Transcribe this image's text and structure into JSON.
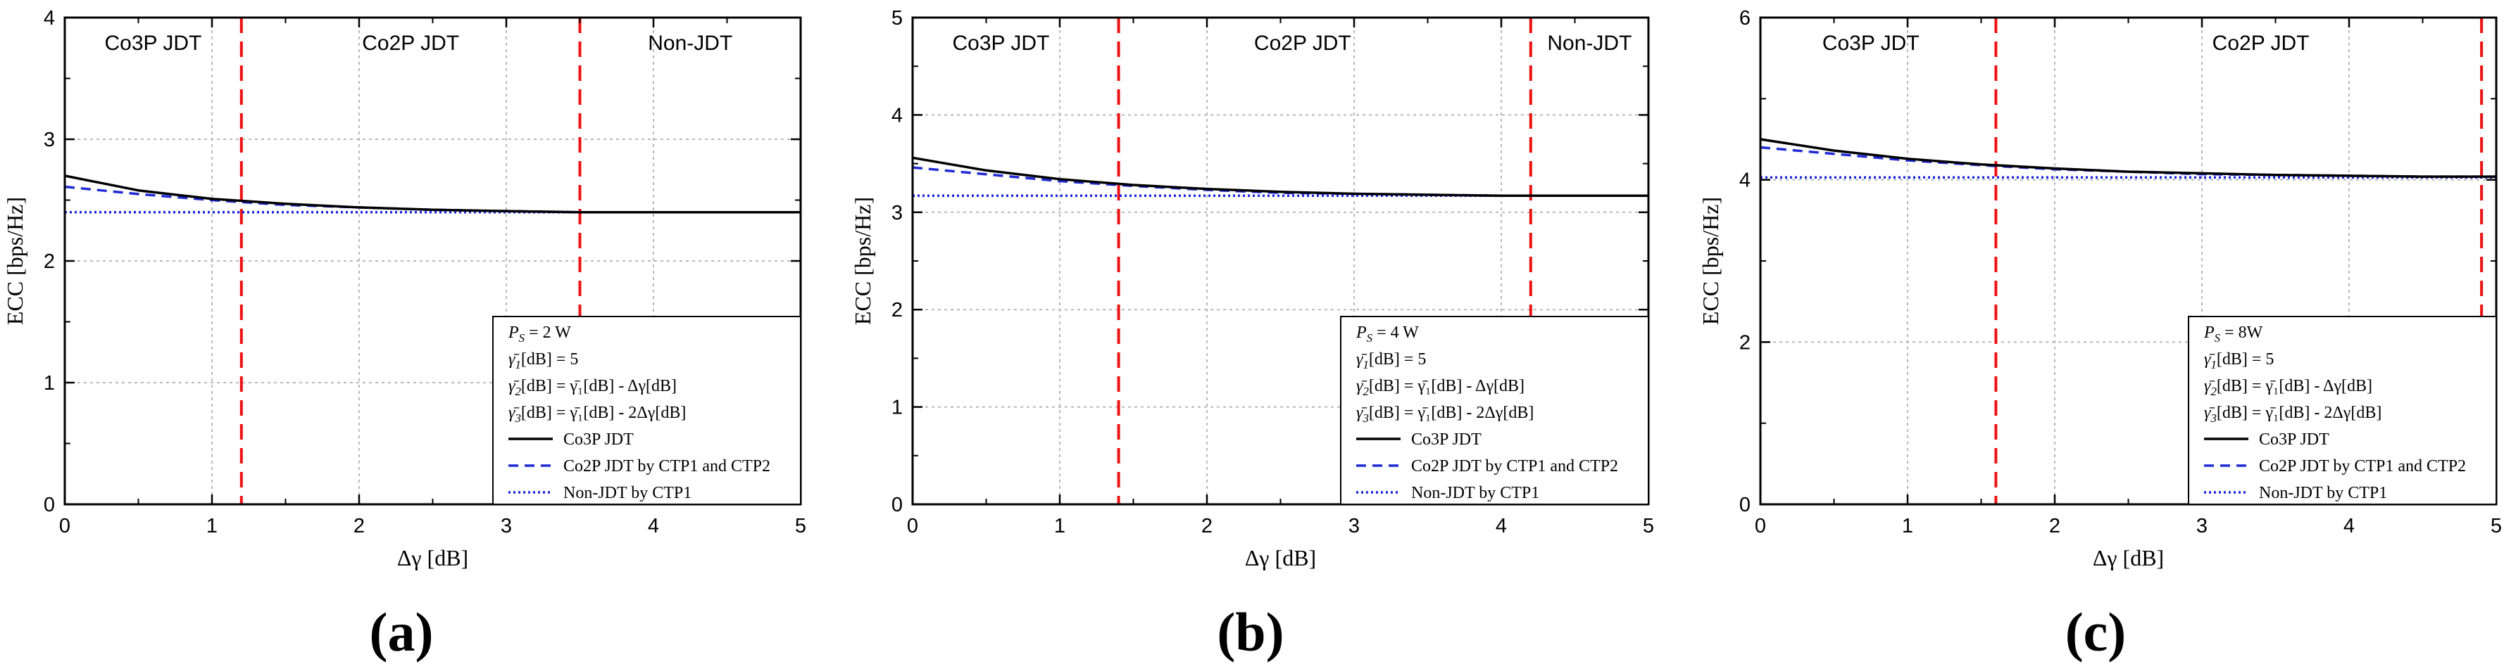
{
  "figure": {
    "panel_labels": [
      "(a)",
      "(b)",
      "(c)"
    ]
  },
  "colors": {
    "co3p": "#000000",
    "co2p": "#1f2bd6",
    "nonjdt": "#1a24e0",
    "threshold": "#ee1111",
    "grid": "#b8b8b8"
  },
  "chart_data": [
    {
      "type": "line",
      "panel": "(a)",
      "xlabel": "Δγ [dB]",
      "ylabel": "ECC [bps/Hz]",
      "xlim": [
        0,
        5
      ],
      "ylim": [
        0,
        4
      ],
      "xticks": [
        0,
        1,
        2,
        3,
        4,
        5
      ],
      "yticks": [
        0,
        1,
        2,
        3,
        4
      ],
      "grid": true,
      "thresholds": [
        1.2,
        3.5
      ],
      "regions": [
        {
          "label": "Co3P JDT",
          "x": 0.6
        },
        {
          "label": "Co2P JDT",
          "x": 2.35
        },
        {
          "label": "Non-JDT",
          "x": 4.25
        }
      ],
      "legend": {
        "location": "bottom-right",
        "params": [
          {
            "sym": "P",
            "sub": "S",
            "rest": " = 2 W"
          },
          {
            "sym": "γ̄",
            "sub": "1",
            "rest": "[dB] = 5"
          },
          {
            "sym": "γ̄",
            "sub": "2",
            "rest": "[dB] = γ̄₁[dB] - Δγ[dB]"
          },
          {
            "sym": "γ̄",
            "sub": "3",
            "rest": "[dB] = γ̄₁[dB] - 2Δγ[dB]"
          }
        ],
        "entries": [
          "Co3P JDT",
          "Co2P JDT by CTP1 and CTP2",
          "Non-JDT by CTP1"
        ]
      },
      "series": [
        {
          "name": "Co3P JDT",
          "style": "solid",
          "x": [
            0,
            0.5,
            1,
            1.5,
            2,
            2.5,
            3,
            3.5,
            4,
            4.5,
            5
          ],
          "y": [
            2.7,
            2.58,
            2.51,
            2.47,
            2.44,
            2.42,
            2.41,
            2.4,
            2.4,
            2.4,
            2.4
          ]
        },
        {
          "name": "Co2P JDT by CTP1 and CTP2",
          "style": "dashed",
          "x": [
            0,
            0.5,
            1,
            1.5,
            2,
            2.5,
            3,
            3.5,
            4,
            4.5,
            5
          ],
          "y": [
            2.61,
            2.55,
            2.5,
            2.46,
            2.44,
            2.42,
            2.41,
            2.4,
            2.4,
            2.4,
            2.4
          ]
        },
        {
          "name": "Non-JDT by CTP1",
          "style": "dotted",
          "x": [
            0,
            5
          ],
          "y": [
            2.4,
            2.4
          ]
        }
      ]
    },
    {
      "type": "line",
      "panel": "(b)",
      "xlabel": "Δγ [dB]",
      "ylabel": "ECC [bps/Hz]",
      "xlim": [
        0,
        5
      ],
      "ylim": [
        0,
        5
      ],
      "xticks": [
        0,
        1,
        2,
        3,
        4,
        5
      ],
      "yticks": [
        0,
        1,
        2,
        3,
        4,
        5
      ],
      "grid": true,
      "thresholds": [
        1.4,
        4.2
      ],
      "regions": [
        {
          "label": "Co3P JDT",
          "x": 0.6
        },
        {
          "label": "Co2P JDT",
          "x": 2.65
        },
        {
          "label": "Non-JDT",
          "x": 4.6
        }
      ],
      "legend": {
        "location": "bottom-right",
        "params": [
          {
            "sym": "P",
            "sub": "S",
            "rest": " = 4 W"
          },
          {
            "sym": "γ̄",
            "sub": "1",
            "rest": "[dB] = 5"
          },
          {
            "sym": "γ̄",
            "sub": "2",
            "rest": "[dB] = γ̄₁[dB] - Δγ[dB]"
          },
          {
            "sym": "γ̄",
            "sub": "3",
            "rest": "[dB] = γ̄₁[dB] - 2Δγ[dB]"
          }
        ],
        "entries": [
          "Co3P JDT",
          "Co2P JDT by CTP1 and CTP2",
          "Non-JDT by CTP1"
        ]
      },
      "series": [
        {
          "name": "Co3P JDT",
          "style": "solid",
          "x": [
            0,
            0.5,
            1,
            1.5,
            2,
            2.5,
            3,
            3.5,
            4,
            4.5,
            5
          ],
          "y": [
            3.56,
            3.43,
            3.34,
            3.28,
            3.24,
            3.21,
            3.19,
            3.18,
            3.17,
            3.17,
            3.17
          ]
        },
        {
          "name": "Co2P JDT by CTP1 and CTP2",
          "style": "dashed",
          "x": [
            0,
            0.5,
            1,
            1.5,
            2,
            2.5,
            3,
            3.5,
            4,
            4.5,
            5
          ],
          "y": [
            3.46,
            3.39,
            3.32,
            3.27,
            3.23,
            3.2,
            3.19,
            3.18,
            3.17,
            3.17,
            3.17
          ]
        },
        {
          "name": "Non-JDT by CTP1",
          "style": "dotted",
          "x": [
            0,
            5
          ],
          "y": [
            3.17,
            3.17
          ]
        }
      ]
    },
    {
      "type": "line",
      "panel": "(c)",
      "xlabel": "Δγ [dB]",
      "ylabel": "ECC [bps/Hz]",
      "xlim": [
        0,
        5
      ],
      "ylim": [
        0,
        6
      ],
      "xticks": [
        0,
        1,
        2,
        3,
        4,
        5
      ],
      "yticks": [
        0,
        2,
        4,
        6
      ],
      "grid": true,
      "thresholds": [
        1.6,
        4.9
      ],
      "regions": [
        {
          "label": "Co3P JDT",
          "x": 0.75
        },
        {
          "label": "Co2P JDT",
          "x": 3.4
        }
      ],
      "legend": {
        "location": "bottom-right",
        "params": [
          {
            "sym": "P",
            "sub": "S",
            "rest": " = 8W"
          },
          {
            "sym": "γ̄",
            "sub": "1",
            "rest": "[dB] = 5"
          },
          {
            "sym": "γ̄",
            "sub": "2",
            "rest": "[dB] = γ̄₁[dB] - Δγ[dB]"
          },
          {
            "sym": "γ̄",
            "sub": "3",
            "rest": "[dB] = γ̄₁[dB] - 2Δγ[dB]"
          }
        ],
        "entries": [
          "Co3P JDT",
          "Co2P JDT by CTP1 and CTP2",
          "Non-JDT by CTP1"
        ]
      },
      "series": [
        {
          "name": "Co3P JDT",
          "style": "solid",
          "x": [
            0,
            0.5,
            1,
            1.5,
            2,
            2.5,
            3,
            3.5,
            4,
            4.5,
            5
          ],
          "y": [
            4.5,
            4.36,
            4.26,
            4.19,
            4.14,
            4.1,
            4.08,
            4.06,
            4.05,
            4.04,
            4.04
          ]
        },
        {
          "name": "Co2P JDT by CTP1 and CTP2",
          "style": "dashed",
          "x": [
            0,
            0.5,
            1,
            1.5,
            2,
            2.5,
            3,
            3.5,
            4,
            4.5,
            5
          ],
          "y": [
            4.4,
            4.32,
            4.24,
            4.18,
            4.13,
            4.1,
            4.07,
            4.06,
            4.05,
            4.04,
            4.04
          ]
        },
        {
          "name": "Non-JDT by CTP1",
          "style": "dotted",
          "x": [
            0,
            5
          ],
          "y": [
            4.03,
            4.03
          ]
        }
      ]
    }
  ]
}
